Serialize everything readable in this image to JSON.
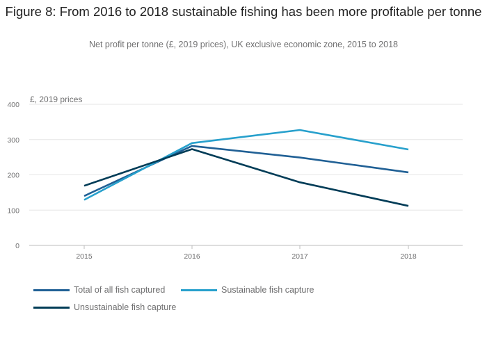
{
  "chart_data": {
    "type": "line",
    "title": "Figure 8: From 2016 to 2018 sustainable fishing has been more profitable per tonne",
    "subtitle": "Net profit per tonne (£, 2019 prices), UK exclusive economic zone, 2015 to 2018",
    "ylabel": "£, 2019 prices",
    "xlabel": "",
    "x": [
      "2015",
      "2016",
      "2017",
      "2018"
    ],
    "yticks": [
      "0",
      "100",
      "200",
      "300",
      "400"
    ],
    "ylim": [
      0,
      400
    ],
    "grid": true,
    "legend_position": "bottom",
    "series": [
      {
        "name": "Total of all fish captured",
        "color": "#206095",
        "values": [
          140,
          282,
          249,
          207
        ]
      },
      {
        "name": "Sustainable fish capture",
        "color": "#27A0CC",
        "values": [
          129,
          290,
          327,
          272
        ]
      },
      {
        "name": "Unsustainable fish capture",
        "color": "#003C57",
        "values": [
          169,
          273,
          179,
          112
        ]
      }
    ]
  }
}
